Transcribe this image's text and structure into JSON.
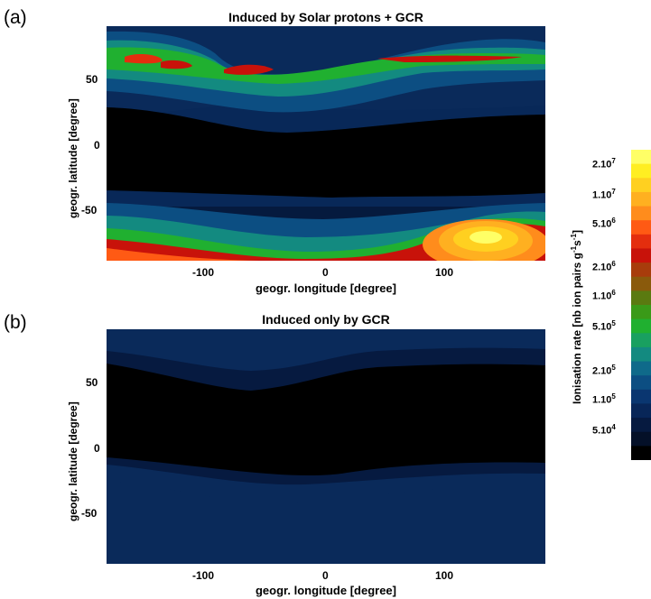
{
  "panels": {
    "a": {
      "label": "(a)",
      "title": "Induced by Solar protons + GCR"
    },
    "b": {
      "label": "(b)",
      "title": "Induced only by  GCR"
    }
  },
  "colorbar": {
    "label": "Ionisation rate [nb ion pairs g-1 s-1]",
    "label_parts": {
      "main": "Ionisation rate [nb ion pairs g",
      "exp1": "-1",
      "mid": "s",
      "exp2": "-1",
      "end": "]"
    },
    "ticks": [
      {
        "base": "2.10",
        "exp": "7"
      },
      {
        "base": "1.10",
        "exp": "7"
      },
      {
        "base": "5.10",
        "exp": "6"
      },
      {
        "base": "2.10",
        "exp": "6"
      },
      {
        "base": "1.10",
        "exp": "6"
      },
      {
        "base": "5.10",
        "exp": "5"
      },
      {
        "base": "2.10",
        "exp": "5"
      },
      {
        "base": "1.10",
        "exp": "5"
      },
      {
        "base": "5.10",
        "exp": "4"
      }
    ],
    "colors": [
      "#ffff66",
      "#ffee22",
      "#ffd020",
      "#ffb020",
      "#ff8c1c",
      "#ff5a14",
      "#e42e0e",
      "#c8120a",
      "#a83c0c",
      "#8a5a0c",
      "#5a7a10",
      "#3a9a18",
      "#20b030",
      "#19a060",
      "#138a80",
      "#0f6a8a",
      "#0c4e82",
      "#0a3670",
      "#082658",
      "#061a40",
      "#041028",
      "#000000"
    ]
  },
  "chart_data": [
    {
      "type": "heatmap",
      "title": "Induced by Solar protons + GCR",
      "xlabel": "geogr. longitude [degree]",
      "ylabel": "geogr. latitude [degree]",
      "xlim": [
        -180,
        180
      ],
      "ylim": [
        -90,
        90
      ],
      "xticks": [
        "-100",
        "0",
        "100"
      ],
      "yticks": [
        "50",
        "0",
        "-50"
      ],
      "xtick_values": [
        -100,
        0,
        100
      ],
      "ytick_values": [
        50,
        0,
        -50
      ],
      "features": [
        {
          "name": "northern auroral band",
          "latitude": 65,
          "peak_level": "1.10^7"
        },
        {
          "name": "southern polar maximum",
          "longitude": 130,
          "latitude": -72,
          "peak_level": "2.10^7"
        }
      ]
    },
    {
      "type": "heatmap",
      "title": "Induced only by  GCR",
      "xlabel": "geogr. longitude [degree]",
      "ylabel": "geogr. latitude [degree]",
      "xlim": [
        -180,
        180
      ],
      "ylim": [
        -90,
        90
      ],
      "xticks": [
        "-100",
        "0",
        "100"
      ],
      "yticks": [
        "50",
        "0",
        "-50"
      ],
      "xtick_values": [
        -100,
        0,
        100
      ],
      "ytick_values": [
        50,
        0,
        -50
      ],
      "features": [
        {
          "name": "polar regions",
          "peak_level": "5.10^4"
        }
      ]
    }
  ]
}
